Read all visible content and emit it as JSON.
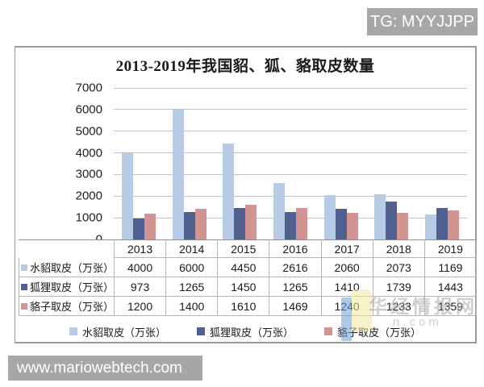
{
  "tg_badge": "TG: MYYJJPP",
  "site_badge": "www.mariowebtech.com",
  "chart_data": {
    "type": "bar",
    "title": "2013-2019年我国貂、狐、貉取皮数量",
    "categories": [
      "2013",
      "2014",
      "2015",
      "2016",
      "2017",
      "2018",
      "2019"
    ],
    "series": [
      {
        "name": "水貂取皮（万张）",
        "color": "#b7cce4",
        "values": [
          4000,
          6000,
          4450,
          2616,
          2060,
          2073,
          1169
        ]
      },
      {
        "name": "狐狸取皮（万张）",
        "color": "#51618f",
        "values": [
          973,
          1265,
          1450,
          1265,
          1410,
          1739,
          1443
        ]
      },
      {
        "name": "貉子取皮（万张）",
        "color": "#d29593",
        "values": [
          1200,
          1400,
          1610,
          1469,
          1240,
          1233,
          1359
        ]
      }
    ],
    "ylim": [
      0,
      7000
    ],
    "ytick_step": 1000,
    "grid": true,
    "legend_position": "bottom",
    "show_data_table": true
  },
  "watermark": {
    "text": "华经情报网",
    "subtext": "n.com"
  }
}
